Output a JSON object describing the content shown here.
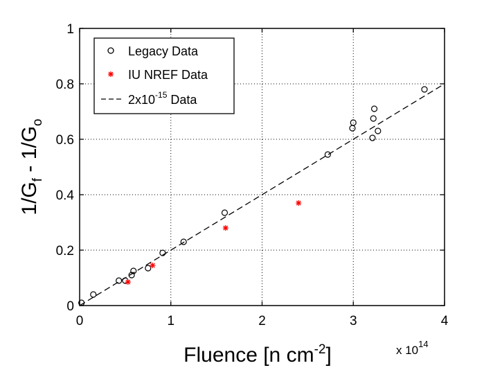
{
  "chart_data": {
    "type": "scatter",
    "xlabel": {
      "main": "Fluence [n cm",
      "sup": "-2",
      "close": "]"
    },
    "ylabel": {
      "p1": "1/G",
      "sub1": "f",
      "p2": " - 1/G",
      "sub2": "o"
    },
    "x_multiplier": {
      "base": "x 10",
      "exp": "14"
    },
    "xlim": [
      0,
      4
    ],
    "ylim": [
      0,
      1
    ],
    "x_ticks": [
      "0",
      "1",
      "2",
      "3",
      "4"
    ],
    "y_ticks": [
      "0",
      "0.2",
      "0.4",
      "0.6",
      "0.8",
      "1"
    ],
    "grid": true,
    "legend_position": "top-left",
    "series": [
      {
        "name": "Legacy Data",
        "marker": "open-circle",
        "color": "#000000",
        "x": [
          0.02,
          0.15,
          0.43,
          0.5,
          0.57,
          0.59,
          0.75,
          0.91,
          1.14,
          1.59,
          2.72,
          2.99,
          3.0,
          3.21,
          3.22,
          3.23,
          3.27,
          3.78
        ],
        "y": [
          0.01,
          0.04,
          0.09,
          0.09,
          0.11,
          0.125,
          0.135,
          0.19,
          0.23,
          0.335,
          0.545,
          0.64,
          0.66,
          0.605,
          0.675,
          0.71,
          0.63,
          0.78
        ]
      },
      {
        "name": "IU NREF Data",
        "marker": "asterisk",
        "color": "#ff0000",
        "x": [
          0.53,
          0.8,
          1.6,
          2.4
        ],
        "y": [
          0.085,
          0.145,
          0.28,
          0.37
        ]
      }
    ],
    "fit_line": {
      "label_prefix": "2x10",
      "label_exp": "-15",
      "label_suffix": " Data",
      "style": "dashed",
      "color": "#000000",
      "x": [
        0,
        4
      ],
      "y": [
        0,
        0.8
      ]
    }
  }
}
